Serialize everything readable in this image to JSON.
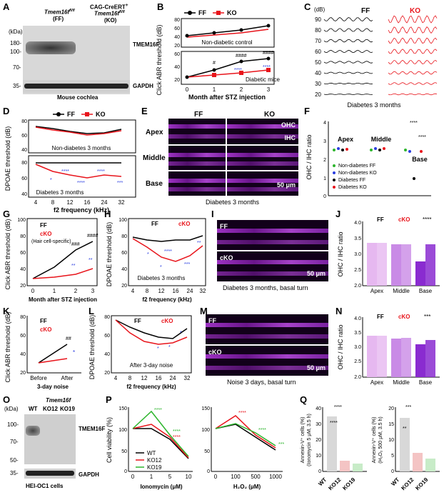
{
  "panels": {
    "A": {
      "letter": "A",
      "kda": "(kDa)",
      "col_ff_gene": "Tmem16f",
      "col_ff_sup": "fl/fl",
      "col_ff_sub": "(FF)",
      "col_ko_cre": "CAG-CreERT",
      "col_ko_gene": "Tmem16f",
      "col_ko_sup": "fl/fl",
      "col_ko_sub": "(KO)",
      "markers": [
        "180-",
        "100-",
        "70-",
        "35-"
      ],
      "band1": "TMEM16F",
      "band2": "GAPDH",
      "caption": "Mouse cochlea"
    },
    "B": {
      "letter": "B",
      "ylabel": "Click ABR threshold (dB)",
      "xlabel": "Month after STZ injection",
      "legend": [
        "FF",
        "KO"
      ],
      "note_top": "Non-diabetic control",
      "note_bottom": "Diabetic mice",
      "xticks": [
        "0",
        "1",
        "2",
        "3"
      ],
      "yticks_top": [
        "80",
        "60",
        "40",
        "20"
      ],
      "yticks_bottom": [
        "60",
        "40",
        "20"
      ]
    },
    "C": {
      "letter": "C",
      "unit": "(dB)",
      "ff": "FF",
      "ko": "KO",
      "levels": [
        "90",
        "80",
        "70",
        "60",
        "50",
        "40",
        "30",
        "20"
      ],
      "caption": "Diabetes 3 months"
    },
    "D": {
      "letter": "D",
      "ylabel": "DPOAE threshold (dB)",
      "xlabel": "f2 frequency (kHz)",
      "legend": [
        "FF",
        "KO"
      ],
      "note_top": "Non-diabetes 3 months",
      "note_bottom": "Diabetes 3 months",
      "xticks": [
        "4",
        "8",
        "12",
        "16",
        "24",
        "32"
      ],
      "yticks_top": [
        "80",
        "60",
        "40"
      ],
      "yticks_bottom": [
        "80",
        "60",
        "40"
      ]
    },
    "E": {
      "letter": "E",
      "ff": "FF",
      "ko": "KO",
      "rows": [
        "Apex",
        "Middle",
        "Base"
      ],
      "ohc": "OHC",
      "ihc": "IHC",
      "scale": "50 μm",
      "caption": "Diabetes 3 months"
    },
    "F": {
      "letter": "F",
      "ylabel": "OHC / IHC ratio",
      "groups": [
        "Apex",
        "Middle",
        "Base"
      ],
      "yticks": [
        "4",
        "3",
        "2",
        "1",
        "0"
      ],
      "legend": [
        "Non-diabetes FF",
        "Non-diabetes KO",
        "Diabetes FF",
        "Diabetes KO"
      ]
    },
    "G": {
      "letter": "G",
      "ylabel": "Click ABR threshold (dB)",
      "xlabel": "Month after STZ injection",
      "legend": [
        "FF",
        "cKO"
      ],
      "note": "(Hair cell-specific)",
      "xticks": [
        "0",
        "1",
        "2",
        "3"
      ],
      "yticks": [
        "100",
        "80",
        "60",
        "40",
        "20"
      ]
    },
    "H": {
      "letter": "H",
      "ylabel": "DPOAE threshold (dB)",
      "xlabel": "f2 frequency (kHz)",
      "legend": [
        "FF",
        "cKO"
      ],
      "note": "Diabetes 3 months",
      "xticks": [
        "4",
        "8",
        "12",
        "16",
        "24",
        "32"
      ],
      "yticks": [
        "100",
        "80",
        "60",
        "40",
        "20"
      ]
    },
    "I": {
      "letter": "I",
      "ff": "FF",
      "cko": "cKO",
      "scale": "50 μm",
      "caption": "Diabetes 3 months, basal turn"
    },
    "J": {
      "letter": "J",
      "ylabel": "OHC / IHC ratio",
      "legend": [
        "FF",
        "cKO"
      ],
      "xticks": [
        "Apex",
        "Middle",
        "Base"
      ],
      "yticks": [
        "4.0",
        "3.5",
        "3.0",
        "2.5",
        "2.0"
      ]
    },
    "K": {
      "letter": "K",
      "ylabel": "Click ABR threshold (dB)",
      "legend": [
        "FF",
        "cKO"
      ],
      "xticks": [
        "Before",
        "After"
      ],
      "xlabel": "3-day noise",
      "yticks": [
        "80",
        "60",
        "40",
        "20"
      ]
    },
    "L": {
      "letter": "L",
      "ylabel": "DPOAE threshold (dB)",
      "xlabel": "f2 frequency (kHz)",
      "legend": [
        "FF",
        "cKO"
      ],
      "note": "After 3-day noise",
      "xticks": [
        "4",
        "8",
        "12",
        "16",
        "24",
        "32"
      ],
      "yticks": [
        "80",
        "60",
        "40",
        "20"
      ]
    },
    "M": {
      "letter": "M",
      "ff": "FF",
      "cko": "cKO",
      "scale": "50 μm",
      "caption": "Noise 3 days, basal turn"
    },
    "N": {
      "letter": "N",
      "ylabel": "OHC / IHC ratio",
      "legend": [
        "FF",
        "cKO"
      ],
      "xticks": [
        "Apex",
        "Middle",
        "Base"
      ],
      "yticks": [
        "4.0",
        "3.5",
        "3.0",
        "2.5",
        "2.0"
      ]
    },
    "O": {
      "letter": "O",
      "kda": "(kDa)",
      "gene": "Tmem16f",
      "cols": [
        "WT",
        "KO12",
        "KO19"
      ],
      "markers": [
        "100-",
        "70-",
        "50-",
        "35-"
      ],
      "band1": "TMEM16F",
      "band2": "GAPDH",
      "caption": "HEI-OC1 cells"
    },
    "P": {
      "letter": "P",
      "ylabel": "Cell viability (%)",
      "legend": [
        "WT",
        "KO12",
        "KO19"
      ],
      "xlabel_left": "Ionomycin (μM)",
      "xlabel_right": "H₂O₂ (μM)",
      "xticks_left": [
        "0",
        "1",
        "5",
        "10"
      ],
      "xticks_right": [
        "0",
        "100",
        "500",
        "1000"
      ],
      "yticks": [
        "150",
        "100",
        "50",
        "0"
      ]
    },
    "Q": {
      "letter": "Q",
      "ylabel_left": "Annexin-V⁺ cells (%)",
      "ylabel_left2": "(Ionomycin 5 μM, 3.5 h)",
      "ylabel_right": "Annexin-V⁺ cells (%)",
      "ylabel_right2": "(H₂O₂ 500 μM, 3.5 h)",
      "xticks": [
        "WT",
        "KO12",
        "KO19"
      ],
      "yticks_left": [
        "40",
        "30",
        "20",
        "10",
        "0"
      ],
      "yticks_right": [
        "20",
        "15",
        "10",
        "5",
        "0"
      ]
    }
  },
  "stars": {
    "four": "****",
    "three": "***",
    "two": "**",
    "one": "*",
    "h1": "#",
    "h3": "###",
    "h4": "####",
    "hh": "##"
  },
  "chart_data": [
    {
      "panel": "B-top",
      "type": "line",
      "x": [
        0,
        1,
        2,
        3
      ],
      "series": [
        {
          "name": "FF",
          "values": [
            30,
            38,
            45,
            55
          ]
        },
        {
          "name": "KO",
          "values": [
            30,
            35,
            42,
            50
          ]
        }
      ],
      "ylim": [
        20,
        80
      ]
    },
    {
      "panel": "B-bottom",
      "type": "line",
      "x": [
        0,
        1,
        2,
        3
      ],
      "series": [
        {
          "name": "FF",
          "values": [
            30,
            45,
            60,
            62
          ]
        },
        {
          "name": "KO",
          "values": [
            30,
            32,
            36,
            42
          ]
        }
      ],
      "ylim": [
        20,
        70
      ]
    },
    {
      "panel": "D-top",
      "type": "line",
      "x": [
        4,
        8,
        12,
        16,
        24,
        32
      ],
      "series": [
        {
          "name": "FF",
          "values": [
            70,
            66,
            62,
            58,
            60,
            64
          ]
        },
        {
          "name": "KO",
          "values": [
            70,
            64,
            60,
            56,
            58,
            62
          ]
        }
      ],
      "ylim": [
        40,
        80
      ]
    },
    {
      "panel": "D-bottom",
      "type": "line",
      "x": [
        4,
        8,
        12,
        16,
        24,
        32
      ],
      "series": [
        {
          "name": "FF",
          "values": [
            74,
            74,
            74,
            74,
            74,
            74
          ]
        },
        {
          "name": "KO",
          "values": [
            72,
            62,
            58,
            54,
            58,
            56
          ]
        }
      ],
      "ylim": [
        40,
        80
      ]
    },
    {
      "panel": "G",
      "type": "line",
      "x": [
        0,
        1,
        2,
        3
      ],
      "series": [
        {
          "name": "FF",
          "values": [
            28,
            42,
            62,
            72
          ]
        },
        {
          "name": "cKO",
          "values": [
            28,
            30,
            34,
            42
          ]
        }
      ],
      "ylim": [
        20,
        100
      ]
    },
    {
      "panel": "H",
      "type": "line",
      "x": [
        4,
        8,
        12,
        16,
        24,
        32
      ],
      "series": [
        {
          "name": "FF",
          "values": [
            76,
            72,
            70,
            72,
            72,
            78
          ]
        },
        {
          "name": "cKO",
          "values": [
            74,
            62,
            46,
            40,
            48,
            60
          ]
        }
      ],
      "ylim": [
        20,
        100
      ]
    },
    {
      "panel": "K",
      "type": "line",
      "x": [
        "Before",
        "After"
      ],
      "series": [
        {
          "name": "FF",
          "values": [
            26,
            52
          ]
        },
        {
          "name": "cKO",
          "values": [
            26,
            34
          ]
        }
      ],
      "ylim": [
        20,
        80
      ]
    },
    {
      "panel": "L",
      "type": "line",
      "x": [
        4,
        8,
        12,
        16,
        24,
        32
      ],
      "series": [
        {
          "name": "FF",
          "values": [
            78,
            70,
            62,
            58,
            56,
            70
          ]
        },
        {
          "name": "cKO",
          "values": [
            78,
            64,
            52,
            48,
            50,
            56
          ]
        }
      ],
      "ylim": [
        20,
        80
      ]
    },
    {
      "panel": "P-ionomycin",
      "type": "line",
      "x": [
        0,
        1,
        5,
        10
      ],
      "series": [
        {
          "name": "WT",
          "values": [
            100,
            100,
            75,
            30
          ]
        },
        {
          "name": "KO12",
          "values": [
            100,
            110,
            80,
            32
          ]
        },
        {
          "name": "KO19",
          "values": [
            100,
            140,
            85,
            35
          ]
        }
      ],
      "ylim": [
        0,
        150
      ]
    },
    {
      "panel": "P-h2o2",
      "type": "line",
      "x": [
        0,
        100,
        500,
        1000
      ],
      "series": [
        {
          "name": "WT",
          "values": [
            100,
            110,
            80,
            50
          ]
        },
        {
          "name": "KO12",
          "values": [
            100,
            130,
            85,
            55
          ]
        },
        {
          "name": "KO19",
          "values": [
            100,
            112,
            90,
            60
          ]
        }
      ],
      "ylim": [
        0,
        150
      ]
    },
    {
      "panel": "J",
      "type": "bar",
      "categories": [
        "Apex",
        "Middle",
        "Base"
      ],
      "series": [
        {
          "name": "FF",
          "values": [
            3.2,
            3.1,
            2.5
          ]
        },
        {
          "name": "cKO",
          "values": [
            3.2,
            3.15,
            3.15
          ]
        }
      ],
      "ylim": [
        2.0,
        4.0
      ]
    },
    {
      "panel": "N",
      "type": "bar",
      "categories": [
        "Apex",
        "Middle",
        "Base"
      ],
      "series": [
        {
          "name": "FF",
          "values": [
            3.1,
            3.0,
            2.8
          ]
        },
        {
          "name": "cKO",
          "values": [
            3.1,
            3.05,
            3.0
          ]
        }
      ],
      "ylim": [
        2.0,
        4.0
      ]
    },
    {
      "panel": "Q-ionomycin",
      "type": "bar",
      "categories": [
        "WT",
        "KO12",
        "KO19"
      ],
      "values": [
        35,
        7,
        5
      ],
      "ylim": [
        0,
        40
      ]
    },
    {
      "panel": "Q-h2o2",
      "type": "bar",
      "categories": [
        "WT",
        "KO12",
        "KO19"
      ],
      "values": [
        17,
        6,
        4
      ],
      "ylim": [
        0,
        20
      ]
    }
  ],
  "colors": {
    "ff": "#000000",
    "ko": "#e8141b",
    "green": "#2db52d",
    "blue": "#2a3de0",
    "magenta": "#b23be0",
    "lightbar": "#e6b8f0",
    "darkbar": "#8a2bd0"
  }
}
